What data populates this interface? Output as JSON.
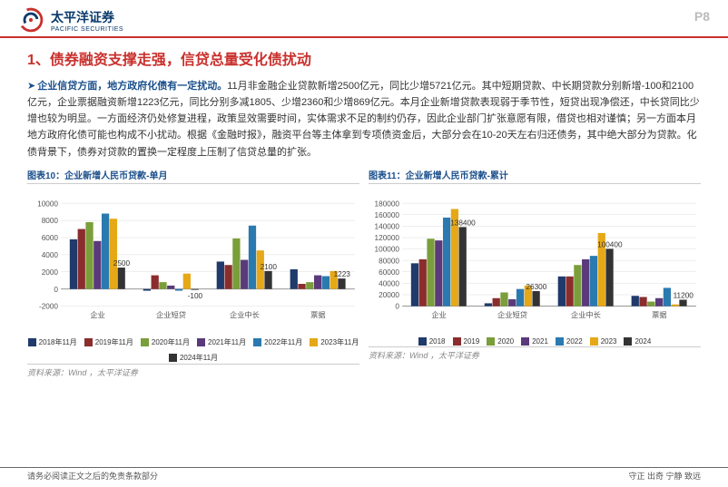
{
  "brand": {
    "cn": "太平洋证券",
    "en": "PACIFIC SECURITIES"
  },
  "page_label": "P8",
  "title": "1、债券融资支撑走强，信贷总量受化债扰动",
  "paragraph_lead": "企业信贷方面，地方政府化债有一定扰动。",
  "paragraph_body": "11月非金融企业贷款新增2500亿元，同比少增5721亿元。其中短期贷款、中长期贷款分别新增-100和2100亿元，企业票据融资新增1223亿元，同比分别多减1805、少增2360和少增869亿元。本月企业新增贷款表现弱于季节性，短贷出现净偿还，中长贷同比少增也较为明显。一方面经济仍处修复进程，政策显效需要时间，实体需求不足的制约仍存，因此企业部门扩张意愿有限，借贷也相对谨慎；另一方面本月地方政府化债可能也构成不小扰动。根据《金融时报》，融资平台等主体拿到专项债资金后，大部分会在10-20天左右归还债务，其中绝大部分为贷款。化债背景下，债券对贷款的置换一定程度上压制了信贷总量的扩张。",
  "chart_left": {
    "title": "图表10：企业新增人民币贷款-单月",
    "type": "bar",
    "categories": [
      "企业",
      "企业短贷",
      "企业中长",
      "票据"
    ],
    "series_labels": [
      "2018年11月",
      "2019年11月",
      "2020年11月",
      "2021年11月",
      "2022年11月",
      "2023年11月",
      "2024年11月"
    ],
    "series_colors": [
      "#1f3a6b",
      "#8b2d2d",
      "#7a9e3a",
      "#5a3a7a",
      "#2a7ab0",
      "#e6a817",
      "#333333"
    ],
    "values": [
      [
        5800,
        7000,
        7800,
        5600,
        8800,
        8200,
        2500
      ],
      [
        -200,
        1600,
        800,
        400,
        -200,
        1800,
        -100
      ],
      [
        3200,
        2800,
        5900,
        3400,
        7400,
        4500,
        2100
      ],
      [
        2300,
        600,
        800,
        1600,
        1500,
        2100,
        1223
      ]
    ],
    "callouts": [
      {
        "cat": 0,
        "series": 6,
        "text": "2500"
      },
      {
        "cat": 1,
        "series": 6,
        "text": "-100"
      },
      {
        "cat": 2,
        "series": 6,
        "text": "2100"
      },
      {
        "cat": 3,
        "series": 6,
        "text": "1223"
      }
    ],
    "ylim": [
      -2000,
      10000
    ],
    "ytick_step": 2000,
    "source": "资料来源：Wind ，太平洋证券"
  },
  "chart_right": {
    "title": "图表11：企业新增人民币贷款-累计",
    "type": "bar",
    "categories": [
      "企业",
      "企业短贷",
      "企业中长",
      "票据"
    ],
    "series_labels": [
      "2018",
      "2019",
      "2020",
      "2021",
      "2022",
      "2023",
      "2024"
    ],
    "series_colors": [
      "#1f3a6b",
      "#8b2d2d",
      "#7a9e3a",
      "#5a3a7a",
      "#2a7ab0",
      "#e6a817",
      "#333333"
    ],
    "values": [
      [
        75000,
        82000,
        118000,
        115000,
        155000,
        170000,
        138400
      ],
      [
        5000,
        14000,
        24000,
        12000,
        30000,
        36000,
        26300
      ],
      [
        52000,
        52000,
        72000,
        82000,
        88000,
        128000,
        100400
      ],
      [
        18000,
        16000,
        8000,
        14000,
        32000,
        3000,
        11200
      ]
    ],
    "callouts": [
      {
        "cat": 0,
        "series": 6,
        "text": "138400"
      },
      {
        "cat": 1,
        "series": 6,
        "text": "26300"
      },
      {
        "cat": 2,
        "series": 6,
        "text": "100400"
      },
      {
        "cat": 3,
        "series": 6,
        "text": "11200"
      }
    ],
    "ylim": [
      0,
      180000
    ],
    "ytick_step": 20000,
    "source": "资料来源：Wind ，太平洋证券"
  },
  "footer_left": "请务必阅读正文之后的免责条款部分",
  "footer_right": "守正  出奇  宁静  致远"
}
